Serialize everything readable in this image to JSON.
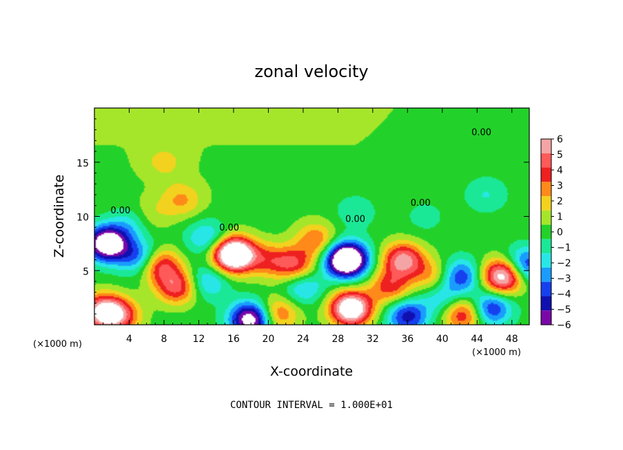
{
  "chart_data": {
    "type": "heatmap",
    "title": "zonal velocity",
    "xlabel": "X-coordinate",
    "ylabel": "Z-coordinate",
    "x_unit": "(×1000 m)",
    "z_unit": "(×1000 m)",
    "x_ticks": [
      4,
      8,
      12,
      16,
      20,
      24,
      28,
      32,
      36,
      40,
      44,
      48
    ],
    "y_ticks": [
      5,
      10,
      15
    ],
    "xlim": [
      0,
      50
    ],
    "ylim": [
      0,
      20
    ],
    "colorbar": {
      "ticks": [
        6,
        5,
        4,
        3,
        2,
        1,
        0,
        -1,
        -2,
        -3,
        -4,
        -5,
        -6
      ],
      "levels": [
        {
          "lo": 5.5,
          "hi": 6.5,
          "color": "#f4a4a4"
        },
        {
          "lo": 4.5,
          "hi": 5.5,
          "color": "#ff5a5a"
        },
        {
          "lo": 3.5,
          "hi": 4.5,
          "color": "#ee2020"
        },
        {
          "lo": 2.5,
          "hi": 3.5,
          "color": "#ff8a1a"
        },
        {
          "lo": 1.5,
          "hi": 2.5,
          "color": "#f2d21e"
        },
        {
          "lo": 0.5,
          "hi": 1.5,
          "color": "#a6e62a"
        },
        {
          "lo": -0.5,
          "hi": 0.5,
          "color": "#22d22a"
        },
        {
          "lo": -1.5,
          "hi": -0.5,
          "color": "#1be896"
        },
        {
          "lo": -2.5,
          "hi": -1.5,
          "color": "#28e6e6"
        },
        {
          "lo": -3.5,
          "hi": -2.5,
          "color": "#1a9cff"
        },
        {
          "lo": -4.5,
          "hi": -3.5,
          "color": "#1640ee"
        },
        {
          "lo": -5.5,
          "hi": -4.5,
          "color": "#1010b0"
        },
        {
          "lo": -6.5,
          "hi": -5.5,
          "color": "#7a08a8"
        }
      ]
    },
    "contour_labels": [
      {
        "text": "0.00",
        "x": 3,
        "z": 10.3
      },
      {
        "text": "0.00",
        "x": 15.5,
        "z": 8.7
      },
      {
        "text": "0.00",
        "x": 30,
        "z": 9.5
      },
      {
        "text": "0.00",
        "x": 37.5,
        "z": 11
      },
      {
        "text": "0.00",
        "x": 44.5,
        "z": 17.5
      }
    ],
    "features": [
      {
        "x": 1.5,
        "z": 7.5,
        "u": -9
      },
      {
        "x": 4.5,
        "z": 9.5,
        "u": -2.5
      },
      {
        "x": 5.2,
        "z": 6.2,
        "u": -4
      },
      {
        "x": 7.5,
        "z": 5.5,
        "u": 5
      },
      {
        "x": 9.5,
        "z": 3.5,
        "u": 5
      },
      {
        "x": 10,
        "z": 11.5,
        "u": 2.5
      },
      {
        "x": 6,
        "z": 10,
        "u": 2
      },
      {
        "x": 13,
        "z": 4,
        "u": -3
      },
      {
        "x": 16,
        "z": 6.5,
        "u": 11
      },
      {
        "x": 13,
        "z": 8,
        "u": -3
      },
      {
        "x": 20,
        "z": 6,
        "u": 3
      },
      {
        "x": 23,
        "z": 5.5,
        "u": 4.5
      },
      {
        "x": 25.5,
        "z": 7.8,
        "u": 3.5
      },
      {
        "x": 29,
        "z": 6,
        "u": -11
      },
      {
        "x": 24,
        "z": 3.5,
        "u": -3
      },
      {
        "x": 29.5,
        "z": 1.5,
        "u": 9
      },
      {
        "x": 35.5,
        "z": 6,
        "u": 6
      },
      {
        "x": 34,
        "z": 3.5,
        "u": 4
      },
      {
        "x": 39,
        "z": 4.5,
        "u": 3
      },
      {
        "x": 42,
        "z": 4.5,
        "u": -4.5
      },
      {
        "x": 47,
        "z": 4.5,
        "u": 8
      },
      {
        "x": 40,
        "z": 2.5,
        "u": -2.5
      },
      {
        "x": 45.5,
        "z": 1.5,
        "u": -5
      },
      {
        "x": 1,
        "z": 1.2,
        "u": 7
      },
      {
        "x": 3,
        "z": 0.8,
        "u": 4
      },
      {
        "x": 18,
        "z": 0.5,
        "u": -8
      },
      {
        "x": 21,
        "z": 1,
        "u": 4
      },
      {
        "x": 36,
        "z": 0.8,
        "u": -5
      },
      {
        "x": 42.5,
        "z": 1,
        "u": 5
      },
      {
        "x": 49.5,
        "z": 5.5,
        "u": -5
      },
      {
        "x": 8,
        "z": 15,
        "u": 1.5
      },
      {
        "x": 45,
        "z": 12,
        "u": -1.6
      },
      {
        "x": 38,
        "z": 10,
        "u": -1
      },
      {
        "x": 30,
        "z": 10.5,
        "u": -1.5
      }
    ]
  },
  "footer": {
    "contour_interval": "CONTOUR INTERVAL =  1.000E+01"
  }
}
